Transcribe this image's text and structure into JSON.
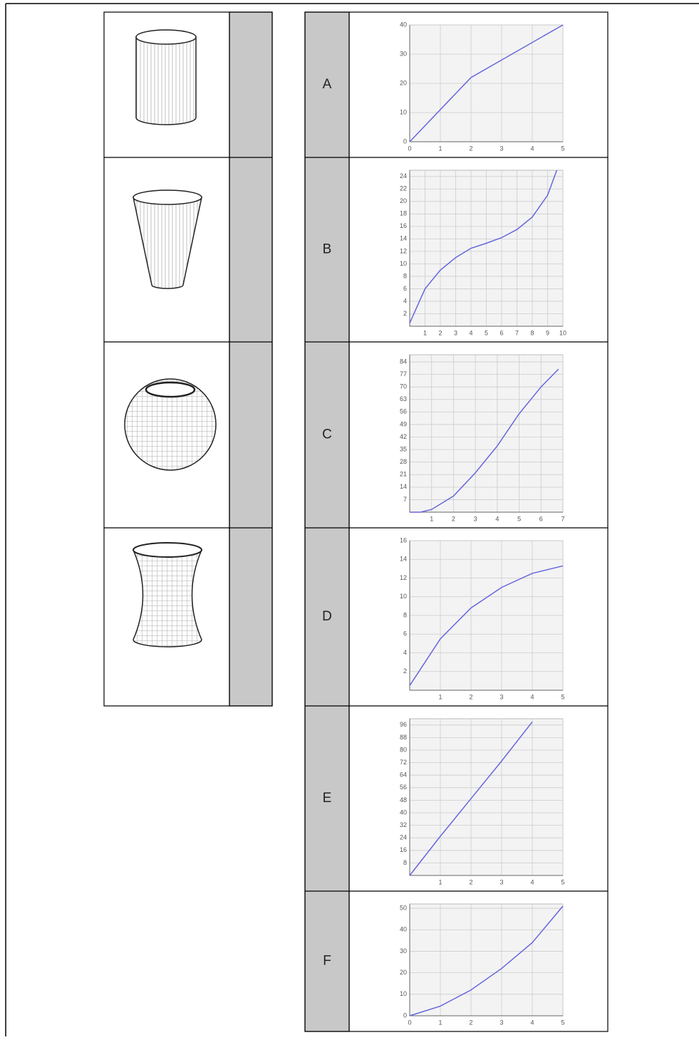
{
  "graphs": [
    {
      "label": "A",
      "chart": {
        "type": "line",
        "color": "#6666dd",
        "grid": true,
        "x": [
          0,
          2,
          5
        ],
        "values": [
          0,
          22,
          40
        ],
        "xlim": [
          0,
          5
        ],
        "ylim": [
          0,
          40
        ],
        "xticks": [
          0,
          1,
          2,
          3,
          4,
          5
        ],
        "yticks": [
          0,
          10,
          20,
          30,
          40
        ]
      }
    },
    {
      "label": "B",
      "chart": {
        "type": "line",
        "color": "#6666dd",
        "grid": true,
        "x": [
          0,
          1,
          2,
          3,
          4,
          5,
          6,
          7,
          8,
          9,
          9.6
        ],
        "values": [
          0.5,
          6,
          9,
          11,
          12.5,
          13.3,
          14.2,
          15.5,
          17.5,
          21,
          25
        ],
        "xlim": [
          0,
          10
        ],
        "ylim": [
          0,
          25
        ],
        "xticks": [
          1,
          2,
          3,
          4,
          5,
          6,
          7,
          8,
          9,
          10
        ],
        "yticks": [
          2,
          4,
          6,
          8,
          10,
          12,
          14,
          16,
          18,
          20,
          22,
          24
        ]
      }
    },
    {
      "label": "C",
      "chart": {
        "type": "line",
        "color": "#6666dd",
        "grid": true,
        "x": [
          0,
          0.5,
          1,
          2,
          3,
          4,
          5,
          6,
          6.8
        ],
        "values": [
          0,
          0,
          1.5,
          9,
          22,
          37,
          55,
          70,
          80
        ],
        "xlim": [
          0,
          7
        ],
        "ylim": [
          0,
          88
        ],
        "xticks": [
          1,
          2,
          3,
          4,
          5,
          6,
          7
        ],
        "yticks": [
          7,
          14,
          21,
          28,
          35,
          42,
          49,
          56,
          63,
          70,
          77,
          84
        ]
      }
    },
    {
      "label": "D",
      "chart": {
        "type": "line",
        "color": "#6666dd",
        "grid": true,
        "x": [
          0,
          1,
          2,
          3,
          4,
          5
        ],
        "values": [
          0.5,
          5.5,
          8.8,
          11,
          12.5,
          13.3
        ],
        "xlim": [
          0,
          5
        ],
        "ylim": [
          0,
          16
        ],
        "xticks": [
          1,
          2,
          3,
          4,
          5
        ],
        "yticks": [
          2,
          4,
          6,
          8,
          10,
          12,
          14,
          16
        ]
      }
    },
    {
      "label": "E",
      "chart": {
        "type": "line",
        "color": "#6666dd",
        "grid": true,
        "x": [
          0,
          1,
          2,
          3,
          4
        ],
        "values": [
          0,
          25,
          49,
          73,
          98
        ],
        "xlim": [
          0,
          5
        ],
        "ylim": [
          0,
          100
        ],
        "xticks": [
          1,
          2,
          3,
          4,
          5
        ],
        "yticks": [
          8,
          16,
          24,
          32,
          40,
          48,
          56,
          64,
          72,
          80,
          88,
          96
        ]
      }
    },
    {
      "label": "F",
      "chart": {
        "type": "line",
        "color": "#6666dd",
        "grid": true,
        "x": [
          0,
          1,
          2,
          3,
          4,
          5
        ],
        "values": [
          0,
          4.5,
          12,
          22,
          34,
          51
        ],
        "xlim": [
          0,
          5
        ],
        "ylim": [
          0,
          52
        ],
        "xticks": [
          0,
          1,
          2,
          3,
          4,
          5
        ],
        "yticks": [
          0,
          10,
          20,
          30,
          40,
          50
        ]
      }
    }
  ]
}
